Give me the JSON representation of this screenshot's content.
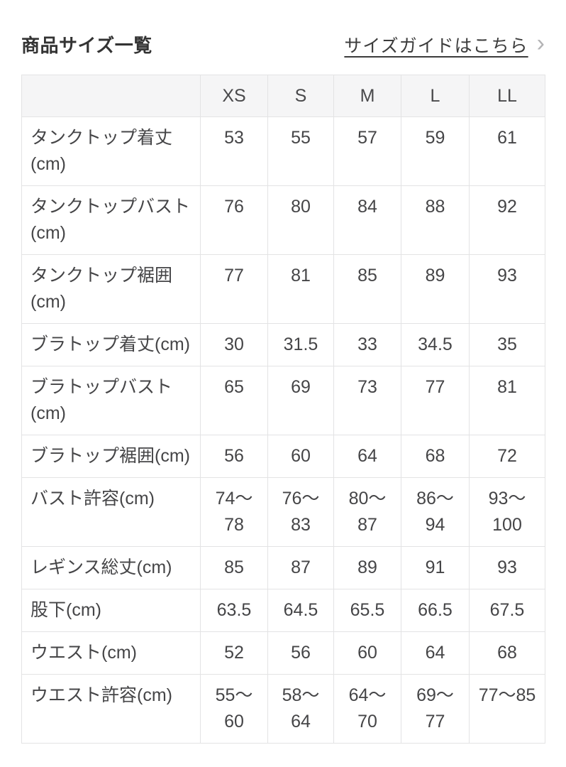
{
  "header": {
    "title": "商品サイズ一覧",
    "size_guide_link": "サイズガイドはこちら",
    "chevron_icon": "›"
  },
  "size_table": {
    "column_headers": [
      "",
      "XS",
      "S",
      "M",
      "L",
      "LL"
    ],
    "unit": "cm",
    "rows": [
      {
        "label": "タンクトップ着丈\n(cm)",
        "values": [
          "53",
          "55",
          "57",
          "59",
          "61"
        ]
      },
      {
        "label": "タンクトップバスト\n(cm)",
        "values": [
          "76",
          "80",
          "84",
          "88",
          "92"
        ]
      },
      {
        "label": "タンクトップ裾囲\n(cm)",
        "values": [
          "77",
          "81",
          "85",
          "89",
          "93"
        ]
      },
      {
        "label": "ブラトップ着丈(cm)",
        "values": [
          "30",
          "31.5",
          "33",
          "34.5",
          "35"
        ]
      },
      {
        "label": "ブラトップバスト\n(cm)",
        "values": [
          "65",
          "69",
          "73",
          "77",
          "81"
        ]
      },
      {
        "label": "ブラトップ裾囲(cm)",
        "values": [
          "56",
          "60",
          "64",
          "68",
          "72"
        ]
      },
      {
        "label": "バスト許容(cm)",
        "values": [
          "74〜\n78",
          "76〜\n83",
          "80〜\n87",
          "86〜\n94",
          "93〜\n100"
        ]
      },
      {
        "label": "レギンス総丈(cm)",
        "values": [
          "85",
          "87",
          "89",
          "91",
          "93"
        ]
      },
      {
        "label": "股下(cm)",
        "values": [
          "63.5",
          "64.5",
          "65.5",
          "66.5",
          "67.5"
        ]
      },
      {
        "label": "ウエスト(cm)",
        "values": [
          "52",
          "56",
          "60",
          "64",
          "68"
        ]
      },
      {
        "label": "ウエスト許容(cm)",
        "values": [
          "55〜\n60",
          "58〜\n64",
          "64〜\n70",
          "69〜\n77",
          "77〜85"
        ]
      }
    ]
  },
  "colors": {
    "table_header_bg": "#f5f5f6",
    "table_border": "#e3e3e4",
    "body_text": "#454547",
    "title_text": "#333333",
    "chevron": "#b3b3b5"
  }
}
